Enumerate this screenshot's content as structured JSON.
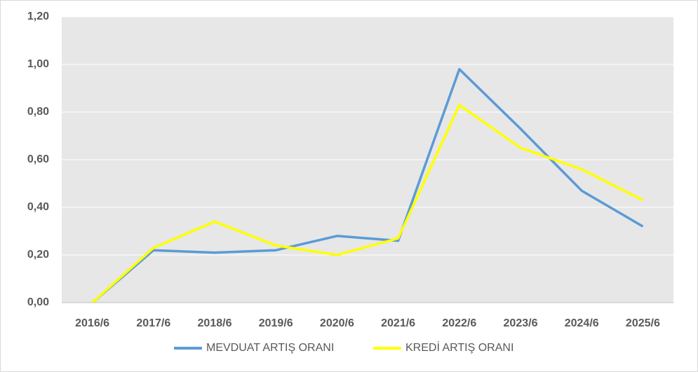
{
  "chart_data": {
    "type": "line",
    "categories": [
      "2016/6",
      "2017/6",
      "2018/6",
      "2019/6",
      "2020/6",
      "2021/6",
      "2022/6",
      "2023/6",
      "2024/6",
      "2025/6"
    ],
    "series": [
      {
        "name": "MEVDUAT ARTIŞ ORANI",
        "color": "#5b9bd5",
        "values": [
          0.0,
          0.22,
          0.21,
          0.22,
          0.28,
          0.26,
          0.98,
          0.73,
          0.47,
          0.32
        ]
      },
      {
        "name": "KREDİ ARTIŞ ORANI",
        "color": "#ffff00",
        "values": [
          0.0,
          0.23,
          0.34,
          0.24,
          0.2,
          0.27,
          0.83,
          0.65,
          0.56,
          0.43
        ]
      }
    ],
    "ylim": [
      0,
      1.2
    ],
    "yticks": [
      {
        "value": 0,
        "label": "0,00"
      },
      {
        "value": 0.2,
        "label": "0,20"
      },
      {
        "value": 0.4,
        "label": "0,40"
      },
      {
        "value": 0.6,
        "label": "0,60"
      },
      {
        "value": 0.8,
        "label": "0,80"
      },
      {
        "value": 1.0,
        "label": "1,00"
      },
      {
        "value": 1.2,
        "label": "1,20"
      }
    ],
    "grid": true,
    "legend": "bottom"
  }
}
